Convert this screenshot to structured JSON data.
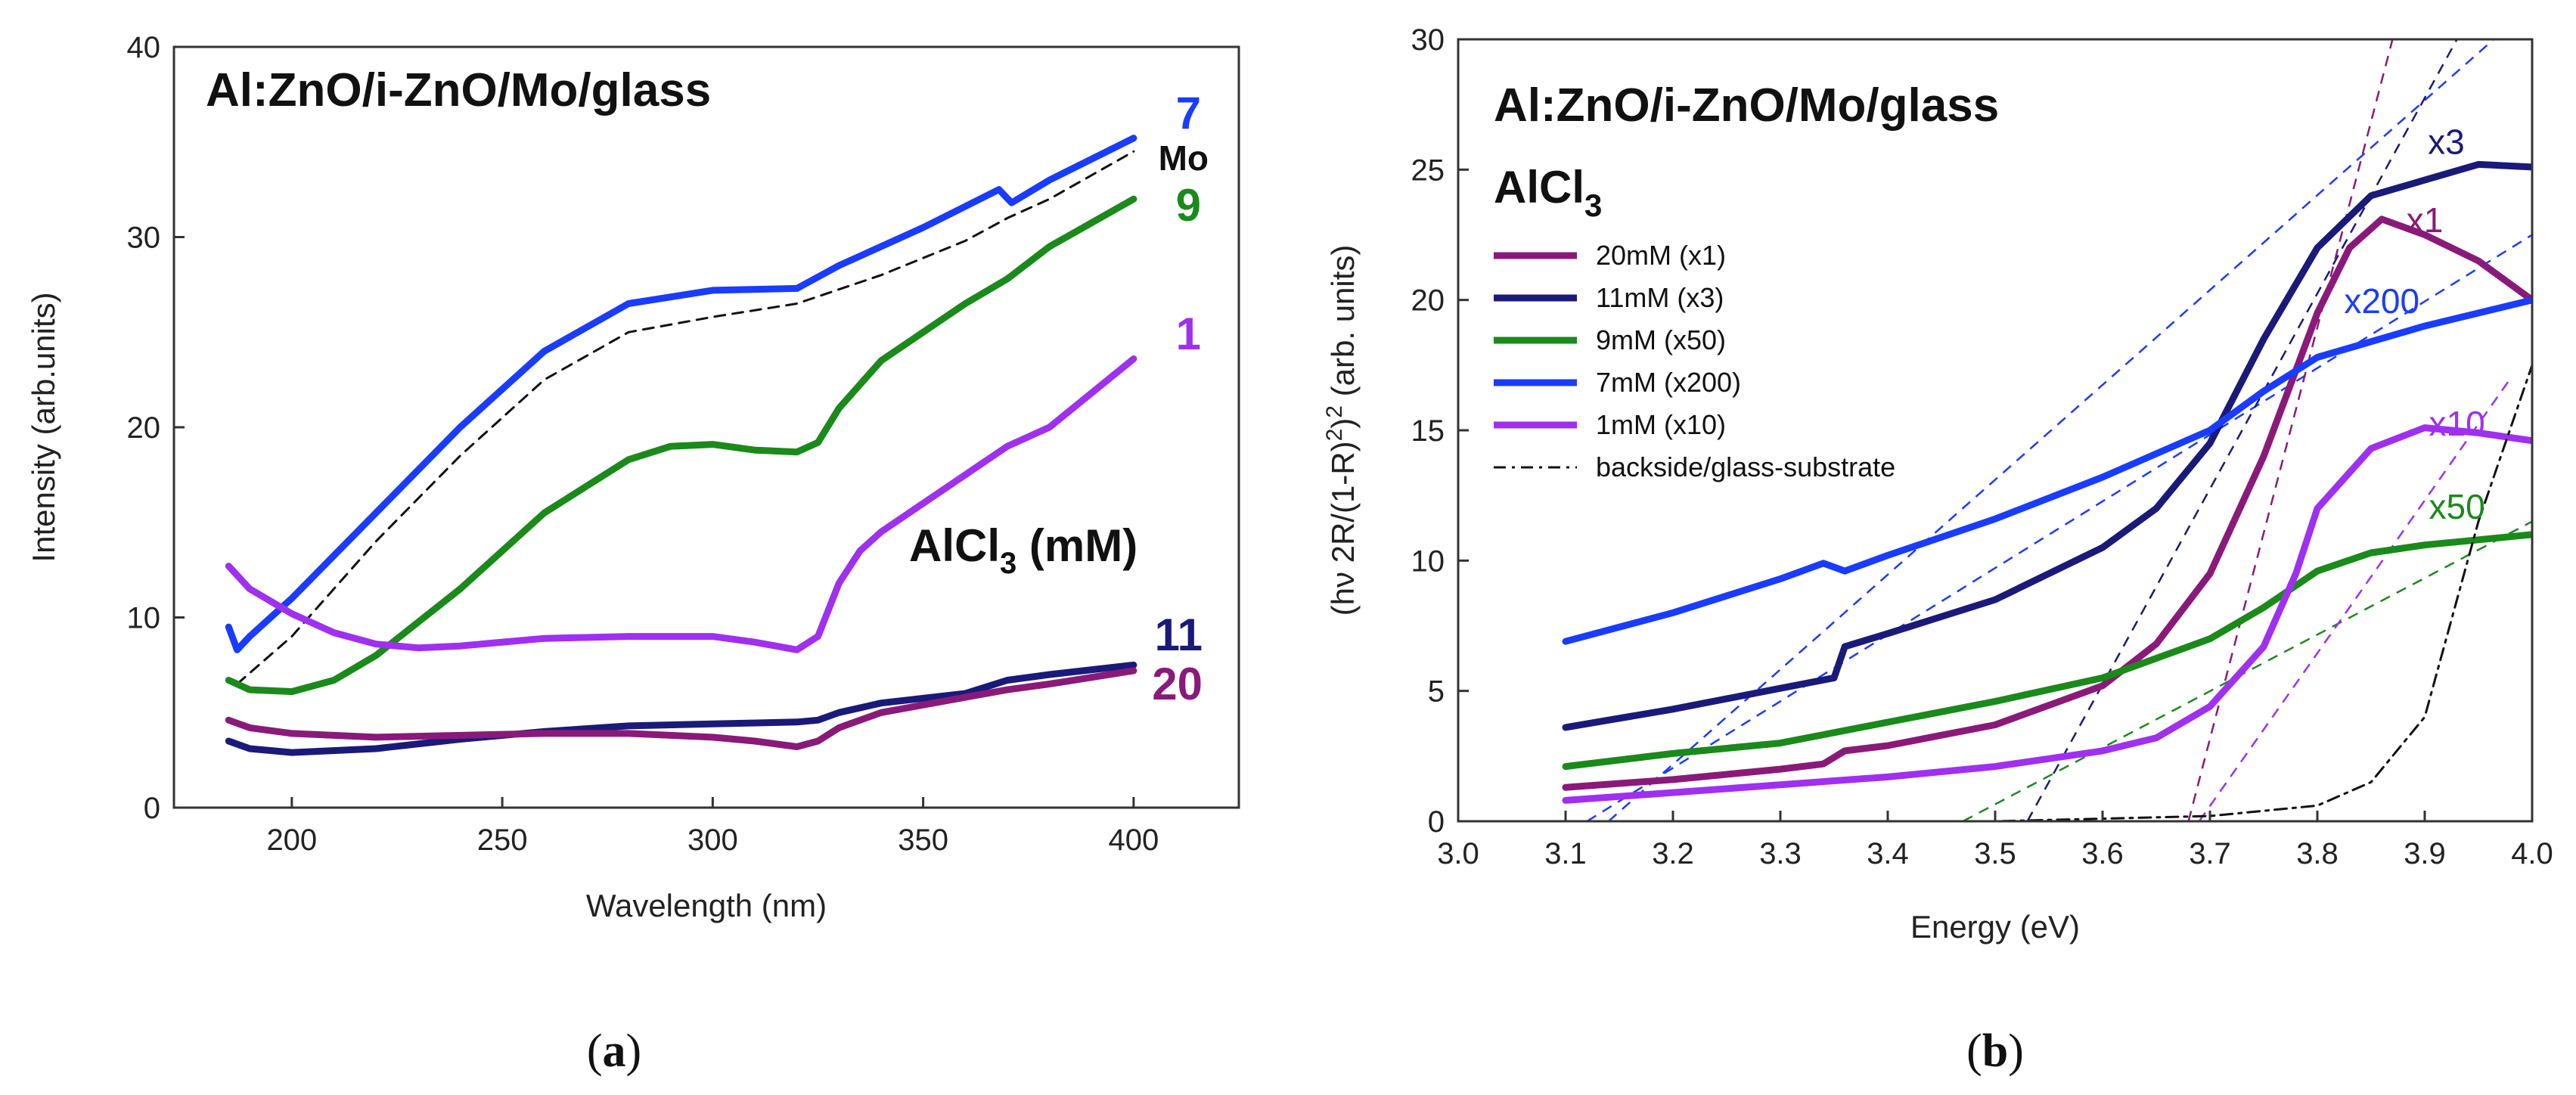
{
  "chart_data": [
    {
      "type": "line",
      "panel": "(a)",
      "title": "Al:ZnO/i-ZnO/Mo/glass",
      "xlabel": "Wavelength (nm)",
      "ylabel": "Intensity (arb.units)",
      "xlim": [
        172,
        425
      ],
      "ylim": [
        0,
        40
      ],
      "xticks": [
        200,
        250,
        300,
        350,
        400
      ],
      "yticks": [
        0,
        10,
        20,
        30,
        40
      ],
      "annotation": {
        "prefix": "AlCl",
        "sub": "3",
        "suffix": " (mM)"
      },
      "series": [
        {
          "name": "7",
          "color": "#1a3cff",
          "x": [
            185,
            187,
            190,
            200,
            220,
            240,
            260,
            280,
            300,
            320,
            330,
            350,
            368,
            371,
            380,
            400
          ],
          "y": [
            9.5,
            8.3,
            9.0,
            11.0,
            15.5,
            20.0,
            24.0,
            26.5,
            27.2,
            27.3,
            28.5,
            30.5,
            32.5,
            31.8,
            33,
            35.2
          ]
        },
        {
          "name": "Mo",
          "color": "#111111",
          "dash": "14,10",
          "x": [
            187,
            200,
            220,
            240,
            260,
            280,
            300,
            320,
            340,
            360,
            370,
            380,
            400
          ],
          "y": [
            6.5,
            9.0,
            14.0,
            18.5,
            22.5,
            25.0,
            25.8,
            26.5,
            28.0,
            29.8,
            31.0,
            32.0,
            34.5
          ]
        },
        {
          "name": "9",
          "color": "#1a8a1a",
          "x": [
            185,
            190,
            200,
            210,
            220,
            240,
            260,
            280,
            290,
            300,
            310,
            320,
            325,
            330,
            340,
            360,
            370,
            380,
            400
          ],
          "y": [
            6.7,
            6.2,
            6.1,
            6.7,
            8.0,
            11.5,
            15.5,
            18.3,
            19.0,
            19.1,
            18.8,
            18.7,
            19.2,
            21.0,
            23.5,
            26.5,
            27.8,
            29.5,
            32.0
          ]
        },
        {
          "name": "1",
          "color": "#a030f0",
          "x": [
            185,
            190,
            200,
            210,
            220,
            230,
            240,
            260,
            280,
            300,
            310,
            320,
            325,
            330,
            335,
            340,
            350,
            360,
            370,
            380,
            400
          ],
          "y": [
            12.7,
            11.5,
            10.2,
            9.2,
            8.6,
            8.4,
            8.5,
            8.9,
            9.0,
            9.0,
            8.7,
            8.3,
            9.0,
            11.8,
            13.5,
            14.5,
            16.0,
            17.5,
            19.0,
            20.0,
            23.6
          ]
        },
        {
          "name": "11",
          "color": "#1a1a7a",
          "x": [
            185,
            190,
            200,
            220,
            240,
            260,
            280,
            300,
            320,
            325,
            330,
            340,
            360,
            370,
            380,
            400
          ],
          "y": [
            3.5,
            3.1,
            2.9,
            3.1,
            3.6,
            4.0,
            4.3,
            4.4,
            4.5,
            4.6,
            5.0,
            5.5,
            6.0,
            6.7,
            7.0,
            7.5
          ]
        },
        {
          "name": "20",
          "color": "#8a1a7a",
          "x": [
            185,
            190,
            200,
            220,
            240,
            260,
            280,
            300,
            310,
            320,
            325,
            330,
            340,
            360,
            370,
            380,
            400
          ],
          "y": [
            4.6,
            4.2,
            3.9,
            3.7,
            3.8,
            3.9,
            3.9,
            3.7,
            3.5,
            3.2,
            3.5,
            4.2,
            5.0,
            5.8,
            6.2,
            6.5,
            7.2
          ]
        }
      ]
    },
    {
      "type": "line",
      "panel": "(b)",
      "title": "Al:ZnO/i-ZnO/Mo/glass",
      "xlabel": "Energy (eV)",
      "ylabel": "(hν 2R/(1-R)²)² (arb. units)",
      "ylabel_parts": {
        "a": "(hν 2R/(1-R)",
        "b": "2",
        "c": ")",
        "d": "2",
        "e": " (arb. units)"
      },
      "xlim": [
        3.0,
        4.0
      ],
      "ylim": [
        0,
        30
      ],
      "xticks": [
        "3.0",
        "3.1",
        "3.2",
        "3.3",
        "3.4",
        "3.5",
        "3.6",
        "3.7",
        "3.8",
        "3.9",
        "4.0"
      ],
      "yticks": [
        0,
        5,
        10,
        15,
        20,
        25,
        30
      ],
      "reagent": {
        "main": "AlCl",
        "sub": "3"
      },
      "series": [
        {
          "name": "20mM (x1)",
          "color": "#8a1a7a",
          "multiplier_label": "x1",
          "x": [
            3.1,
            3.2,
            3.3,
            3.34,
            3.36,
            3.4,
            3.5,
            3.6,
            3.65,
            3.7,
            3.75,
            3.8,
            3.83,
            3.86,
            3.9,
            3.95,
            4.0
          ],
          "y": [
            1.3,
            1.6,
            2.0,
            2.2,
            2.7,
            2.9,
            3.7,
            5.2,
            6.8,
            9.5,
            14.0,
            19.5,
            22.0,
            23.1,
            22.5,
            21.5,
            20.0
          ]
        },
        {
          "name": "11mM (x3)",
          "color": "#1a1a7a",
          "multiplier_label": "x3",
          "x": [
            3.1,
            3.2,
            3.3,
            3.35,
            3.36,
            3.4,
            3.5,
            3.6,
            3.65,
            3.7,
            3.75,
            3.8,
            3.85,
            3.9,
            3.95,
            4.0
          ],
          "y": [
            3.6,
            4.3,
            5.1,
            5.5,
            6.7,
            7.2,
            8.5,
            10.5,
            12.0,
            14.5,
            18.5,
            22.0,
            24.0,
            24.6,
            25.2,
            25.1
          ]
        },
        {
          "name": "9mM (x50)",
          "color": "#1a8a1a",
          "multiplier_label": "x50",
          "x": [
            3.1,
            3.2,
            3.3,
            3.4,
            3.5,
            3.6,
            3.7,
            3.75,
            3.8,
            3.85,
            3.9,
            3.95,
            4.0
          ],
          "y": [
            2.1,
            2.6,
            3.0,
            3.8,
            4.6,
            5.5,
            7.0,
            8.2,
            9.6,
            10.3,
            10.6,
            10.8,
            11.0
          ]
        },
        {
          "name": "7mM (x200)",
          "color": "#1a3cff",
          "multiplier_label": "x200",
          "x": [
            3.1,
            3.2,
            3.3,
            3.34,
            3.36,
            3.4,
            3.5,
            3.6,
            3.7,
            3.75,
            3.8,
            3.9,
            4.0
          ],
          "y": [
            6.9,
            8.0,
            9.3,
            9.9,
            9.6,
            10.2,
            11.6,
            13.2,
            15.0,
            16.5,
            17.8,
            19.0,
            20.0
          ]
        },
        {
          "name": "1mM (x10)",
          "color": "#a030f0",
          "multiplier_label": "x10",
          "x": [
            3.1,
            3.2,
            3.3,
            3.4,
            3.5,
            3.6,
            3.65,
            3.7,
            3.75,
            3.78,
            3.8,
            3.85,
            3.9,
            3.95,
            4.0
          ],
          "y": [
            0.8,
            1.1,
            1.4,
            1.7,
            2.1,
            2.7,
            3.2,
            4.4,
            6.7,
            9.5,
            12.0,
            14.3,
            15.1,
            14.9,
            14.6
          ]
        },
        {
          "name": "backside/glass-substrate",
          "color": "#111111",
          "dash": "16,8,4,8",
          "x": [
            3.0,
            3.5,
            3.7,
            3.8,
            3.85,
            3.9,
            3.92,
            3.95,
            4.0
          ],
          "y": [
            0.0,
            0.0,
            0.2,
            0.6,
            1.5,
            4.0,
            7.0,
            11.5,
            17.5
          ]
        }
      ],
      "fit_lines": [
        {
          "color": "#1a3cff",
          "x": [
            3.14,
            4.0
          ],
          "y": [
            0,
            31.3
          ]
        },
        {
          "color": "#1a3cff",
          "x": [
            3.12,
            4.0
          ],
          "y": [
            0,
            22.5
          ]
        },
        {
          "color": "#1a1a7a",
          "x": [
            3.53,
            3.93
          ],
          "y": [
            0,
            30
          ]
        },
        {
          "color": "#1a8a1a",
          "x": [
            3.47,
            4.0
          ],
          "y": [
            0,
            11.5
          ]
        },
        {
          "color": "#8a1a7a",
          "x": [
            3.68,
            3.87
          ],
          "y": [
            0,
            30
          ]
        },
        {
          "color": "#a030f0",
          "x": [
            3.69,
            3.98
          ],
          "y": [
            0,
            17
          ]
        }
      ]
    }
  ],
  "panel_a_labels": {
    "l7": "7",
    "mo": "Mo",
    "l9": "9",
    "l1": "1",
    "l11": "11",
    "l20": "20"
  },
  "captions": {
    "a": {
      "open": "(",
      "letter": "a",
      "close": ")"
    },
    "b": {
      "open": "(",
      "letter": "b",
      "close": ")"
    }
  },
  "colors": {
    "blue": "#1a3cff",
    "navy": "#1a1a7a",
    "green": "#1a8a1a",
    "purple": "#a030f0",
    "magenta": "#8a1a7a"
  }
}
